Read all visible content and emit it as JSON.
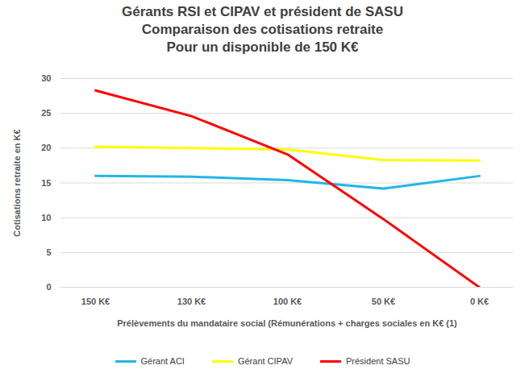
{
  "chart_data": {
    "type": "line",
    "title": "Gérants RSI et CIPAV et président de SASU\nComparaison des cotisations retraite\nPour un disponible de 150 K€",
    "x_label": "Prélèvements du mandataire social (Rémunérations + charges sociales en K€ (1)",
    "y_label": "Cotisations retraite en K€",
    "categories": [
      "150 K€",
      "130 K€",
      "100 K€",
      "50 K€",
      "0 K€"
    ],
    "series": [
      {
        "name": "Gérant ACI",
        "color": "#22b5e6",
        "values": [
          16,
          15.9,
          15.4,
          14.2,
          16
        ]
      },
      {
        "name": "Gérant CIPAV",
        "color": "#ffff00",
        "values": [
          20.2,
          20,
          19.8,
          18.3,
          18.2
        ]
      },
      {
        "name": "Président SASU",
        "color": "#ff0000",
        "values": [
          28.3,
          24.6,
          19.1,
          9.8,
          0
        ]
      }
    ],
    "ylim": [
      0,
      30
    ],
    "yticks": [
      0,
      5,
      10,
      15,
      20,
      25,
      30
    ],
    "grid": true,
    "legend": "bottom"
  }
}
